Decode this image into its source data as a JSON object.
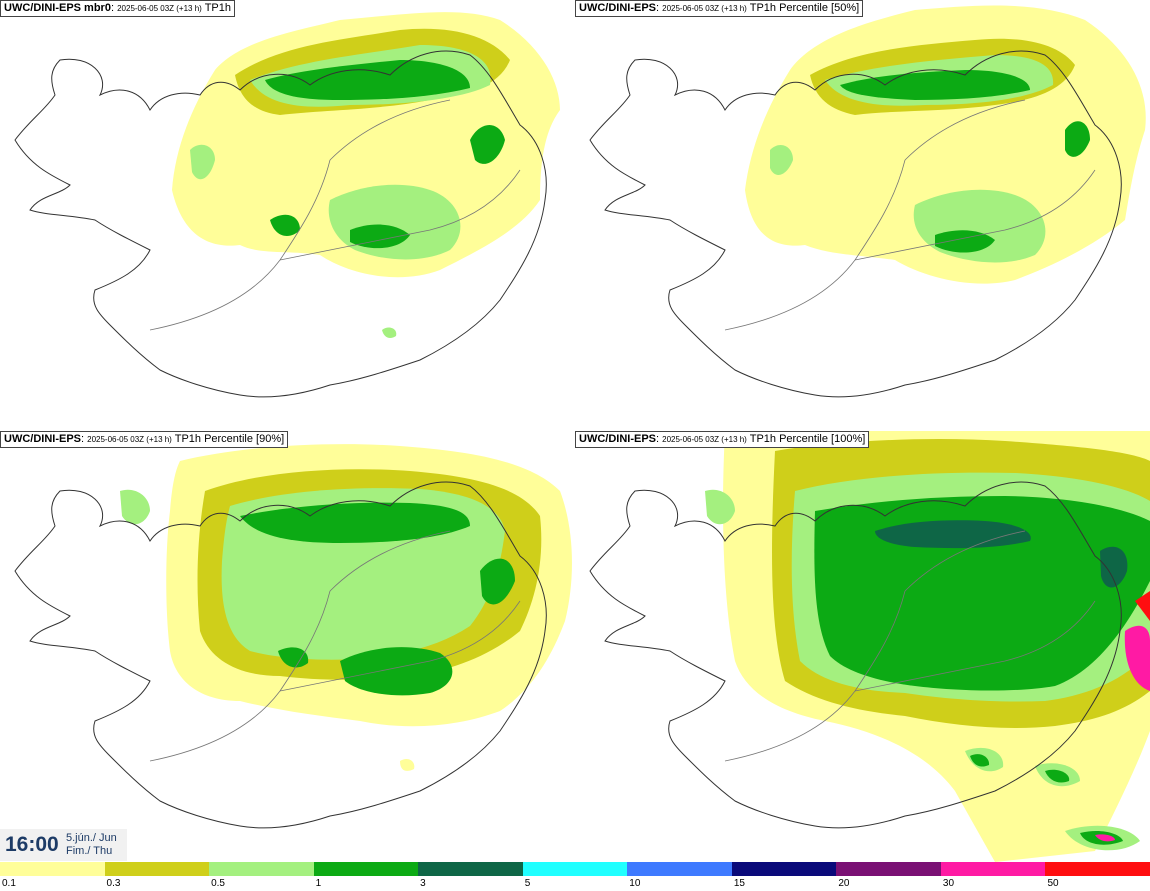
{
  "panels": [
    {
      "model": "UWC/DINI-EPS mbr0",
      "run": "2025-06-05 03Z (+13 h)",
      "field": "TP1h"
    },
    {
      "model": "UWC/DINI-EPS",
      "run": "2025-06-05 03Z (+13 h)",
      "field": "TP1h Percentile [50%]"
    },
    {
      "model": "UWC/DINI-EPS",
      "run": "2025-06-05 03Z (+13 h)",
      "field": "TP1h Percentile [90%]"
    },
    {
      "model": "UWC/DINI-EPS",
      "run": "2025-06-05 03Z (+13 h)",
      "field": "TP1h Percentile [100%]"
    }
  ],
  "valid_time": {
    "time": "16:00",
    "date_line1": "5.jún./ Jun",
    "date_line2": "Fim./ Thu"
  },
  "legend": {
    "labels": [
      "0.1",
      "0.3",
      "0.5",
      "1",
      "3",
      "5",
      "10",
      "15",
      "20",
      "30",
      "50"
    ],
    "colors": [
      "#fffe99",
      "#cfcf1a",
      "#a4f07f",
      "#0caa14",
      "#0e6646",
      "#20ffff",
      "#3e7aff",
      "#0a0a7a",
      "#7a1074",
      "#ff1aa4",
      "#ff0e10"
    ]
  }
}
